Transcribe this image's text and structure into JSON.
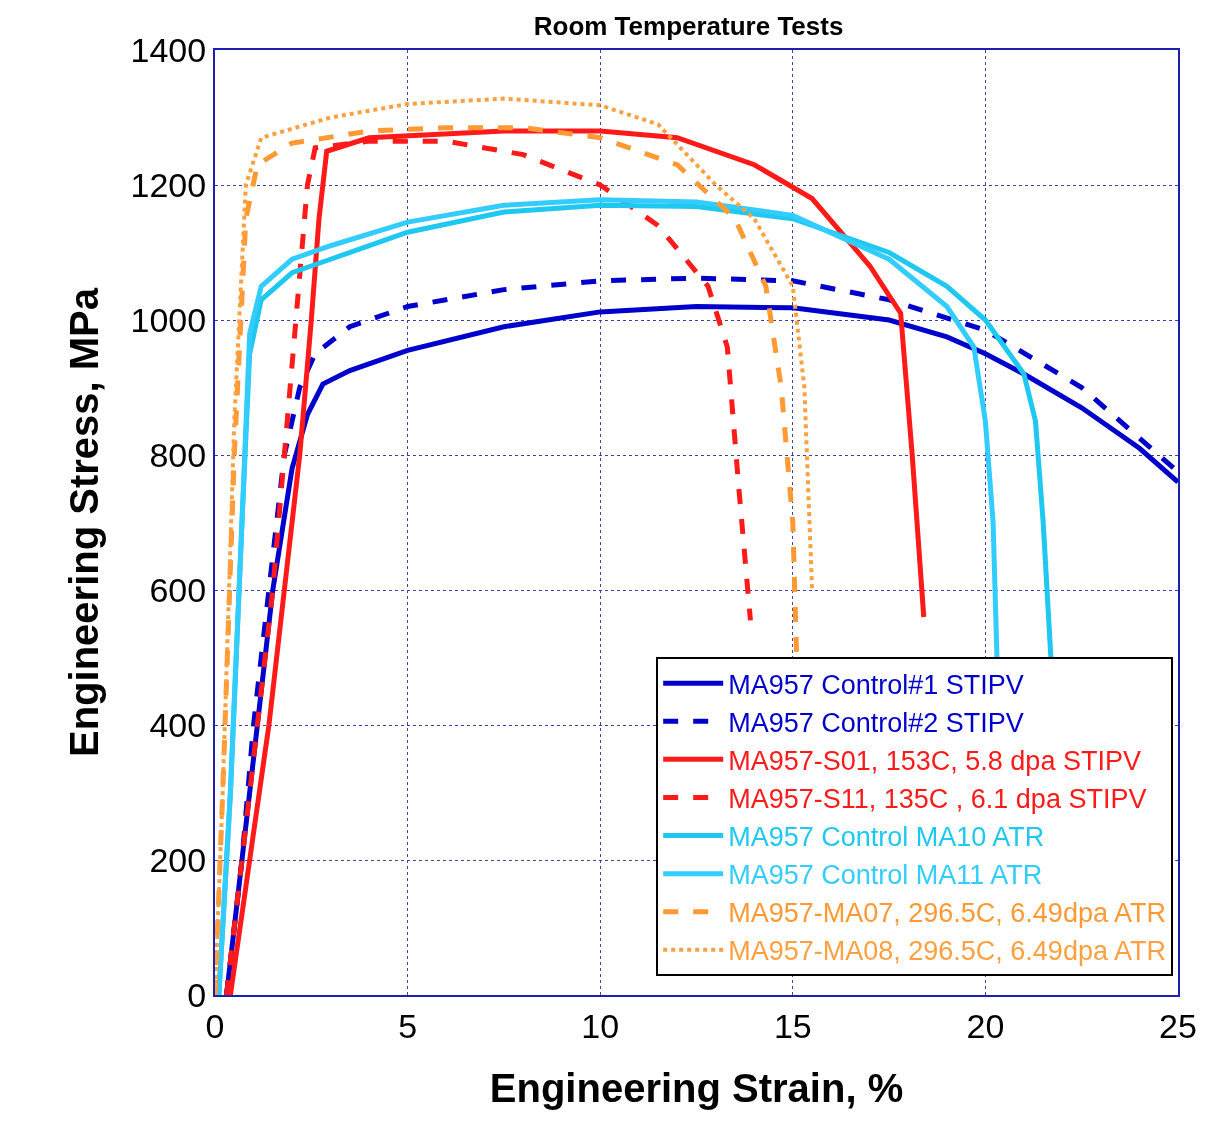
{
  "chart_data": {
    "type": "line",
    "title": "Room Temperature Tests",
    "xlabel": "Engineering Strain, %",
    "ylabel": "Engineering Stress, MPa",
    "xlim": [
      0,
      25
    ],
    "xticks": [
      0,
      5,
      10,
      15,
      20,
      25
    ],
    "ylim": [
      0,
      1400
    ],
    "yticks": [
      0,
      200,
      400,
      600,
      800,
      1000,
      1200,
      1400
    ],
    "grid": true,
    "legend": "bottom right",
    "marker": "none",
    "series": [
      {
        "name": "MA957 Control#1 STIPV",
        "color": "#0000cc",
        "line_style": "solid",
        "x": [
          0.3,
          0.7,
          1.1,
          1.5,
          2,
          2.4,
          2.8,
          3.5,
          5,
          7.5,
          10,
          12.5,
          15,
          17.5,
          19,
          20,
          21,
          22.5,
          24,
          25
        ],
        "values": [
          0,
          200,
          400,
          600,
          780,
          860,
          905,
          925,
          955,
          990,
          1012,
          1020,
          1018,
          1000,
          975,
          950,
          920,
          870,
          810,
          760
        ]
      },
      {
        "name": "MA957 Control#2 STIPV",
        "color": "#0000cc",
        "line_style": "dashed",
        "x": [
          0.3,
          0.7,
          1,
          1.4,
          1.8,
          2.2,
          2.6,
          3.5,
          5,
          7.5,
          10,
          12.5,
          15,
          17.5,
          20,
          22.5,
          25
        ],
        "values": [
          0,
          200,
          400,
          600,
          800,
          900,
          950,
          990,
          1020,
          1045,
          1058,
          1062,
          1058,
          1030,
          985,
          900,
          775
        ]
      },
      {
        "name": "MA957-S01, 153C, 5.8 dpa STIPV",
        "color": "#ff1a1a",
        "line_style": "solid",
        "x": [
          0.4,
          0.9,
          1.4,
          1.8,
          2.2,
          2.5,
          2.7,
          2.9,
          4,
          7.5,
          10,
          12,
          14,
          15.5,
          17,
          17.8,
          18.1,
          18.4
        ],
        "values": [
          0,
          200,
          400,
          600,
          800,
          1000,
          1150,
          1250,
          1270,
          1280,
          1280,
          1270,
          1230,
          1180,
          1080,
          1010,
          800,
          560
        ]
      },
      {
        "name": "MA957-S11, 135C , 6.1 dpa STIPV",
        "color": "#ff1a1a",
        "line_style": "dashed",
        "x": [
          0.3,
          0.7,
          1.1,
          1.5,
          1.8,
          2.1,
          2.4,
          2.6,
          4,
          6,
          8,
          10,
          11.5,
          12.8,
          13.3,
          13.6,
          13.9
        ],
        "values": [
          0,
          200,
          400,
          600,
          800,
          1000,
          1200,
          1255,
          1265,
          1265,
          1245,
          1200,
          1140,
          1050,
          960,
          750,
          555
        ]
      },
      {
        "name": "MA957 Control MA10 ATR",
        "color": "#1ec8f0",
        "line_style": "solid",
        "x": [
          0.1,
          0.4,
          0.7,
          0.9,
          1.2,
          2,
          3,
          5,
          7.5,
          10,
          12.5,
          15,
          17.5,
          19,
          20,
          21,
          21.3,
          21.5,
          21.7
        ],
        "values": [
          0,
          300,
          700,
          950,
          1030,
          1070,
          1090,
          1130,
          1160,
          1170,
          1168,
          1150,
          1100,
          1050,
          1000,
          920,
          850,
          700,
          500
        ]
      },
      {
        "name": "MA957 Control MA11 ATR",
        "color": "#33ccff",
        "line_style": "solid",
        "x": [
          0.1,
          0.4,
          0.7,
          0.9,
          1.2,
          2,
          3,
          5,
          7.5,
          10,
          12.5,
          15,
          17.5,
          19,
          19.7,
          20,
          20.2,
          20.3
        ],
        "values": [
          0,
          300,
          700,
          980,
          1050,
          1090,
          1110,
          1145,
          1170,
          1178,
          1175,
          1155,
          1090,
          1020,
          960,
          850,
          700,
          500
        ]
      },
      {
        "name": "MA957-MA07, 296.5C, 6.49dpa ATR",
        "color": "#ff9933",
        "line_style": "dashed",
        "x": [
          0,
          0.2,
          0.5,
          0.8,
          1.1,
          2,
          4,
          6,
          8,
          10,
          12,
          13.5,
          14.3,
          14.7,
          15,
          15.1
        ],
        "values": [
          0,
          300,
          800,
          1150,
          1230,
          1262,
          1280,
          1285,
          1285,
          1270,
          1230,
          1150,
          1050,
          900,
          700,
          500
        ]
      },
      {
        "name": "MA957-MA08, 296.5C, 6.49dpa ATR",
        "color": "#ffa040",
        "line_style": "dotted",
        "x": [
          0,
          0.2,
          0.5,
          0.8,
          1.2,
          3,
          5,
          7.5,
          10,
          11.5,
          13,
          14,
          15,
          15.3,
          15.5
        ],
        "values": [
          0,
          300,
          850,
          1200,
          1270,
          1300,
          1320,
          1328,
          1318,
          1290,
          1200,
          1150,
          1050,
          900,
          600
        ]
      }
    ]
  }
}
